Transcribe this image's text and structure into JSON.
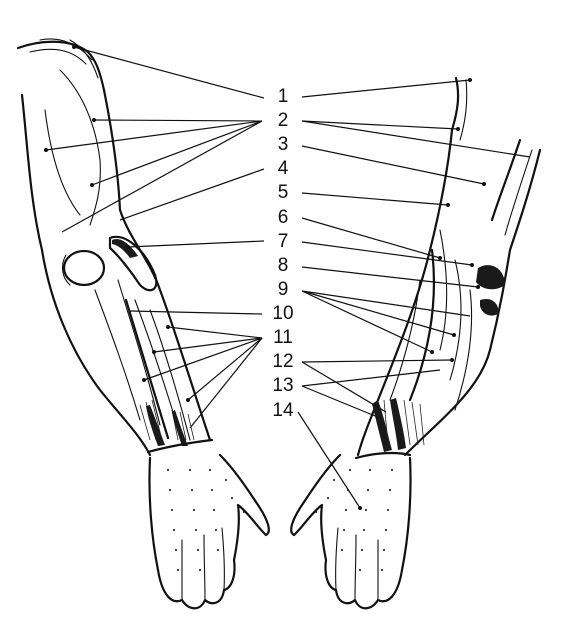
{
  "labels": [
    "1",
    "2",
    "3",
    "4",
    "5",
    "6",
    "7",
    "8",
    "9",
    "10",
    "11",
    "12",
    "13",
    "14"
  ],
  "figure": "arm-anatomy-illustration"
}
